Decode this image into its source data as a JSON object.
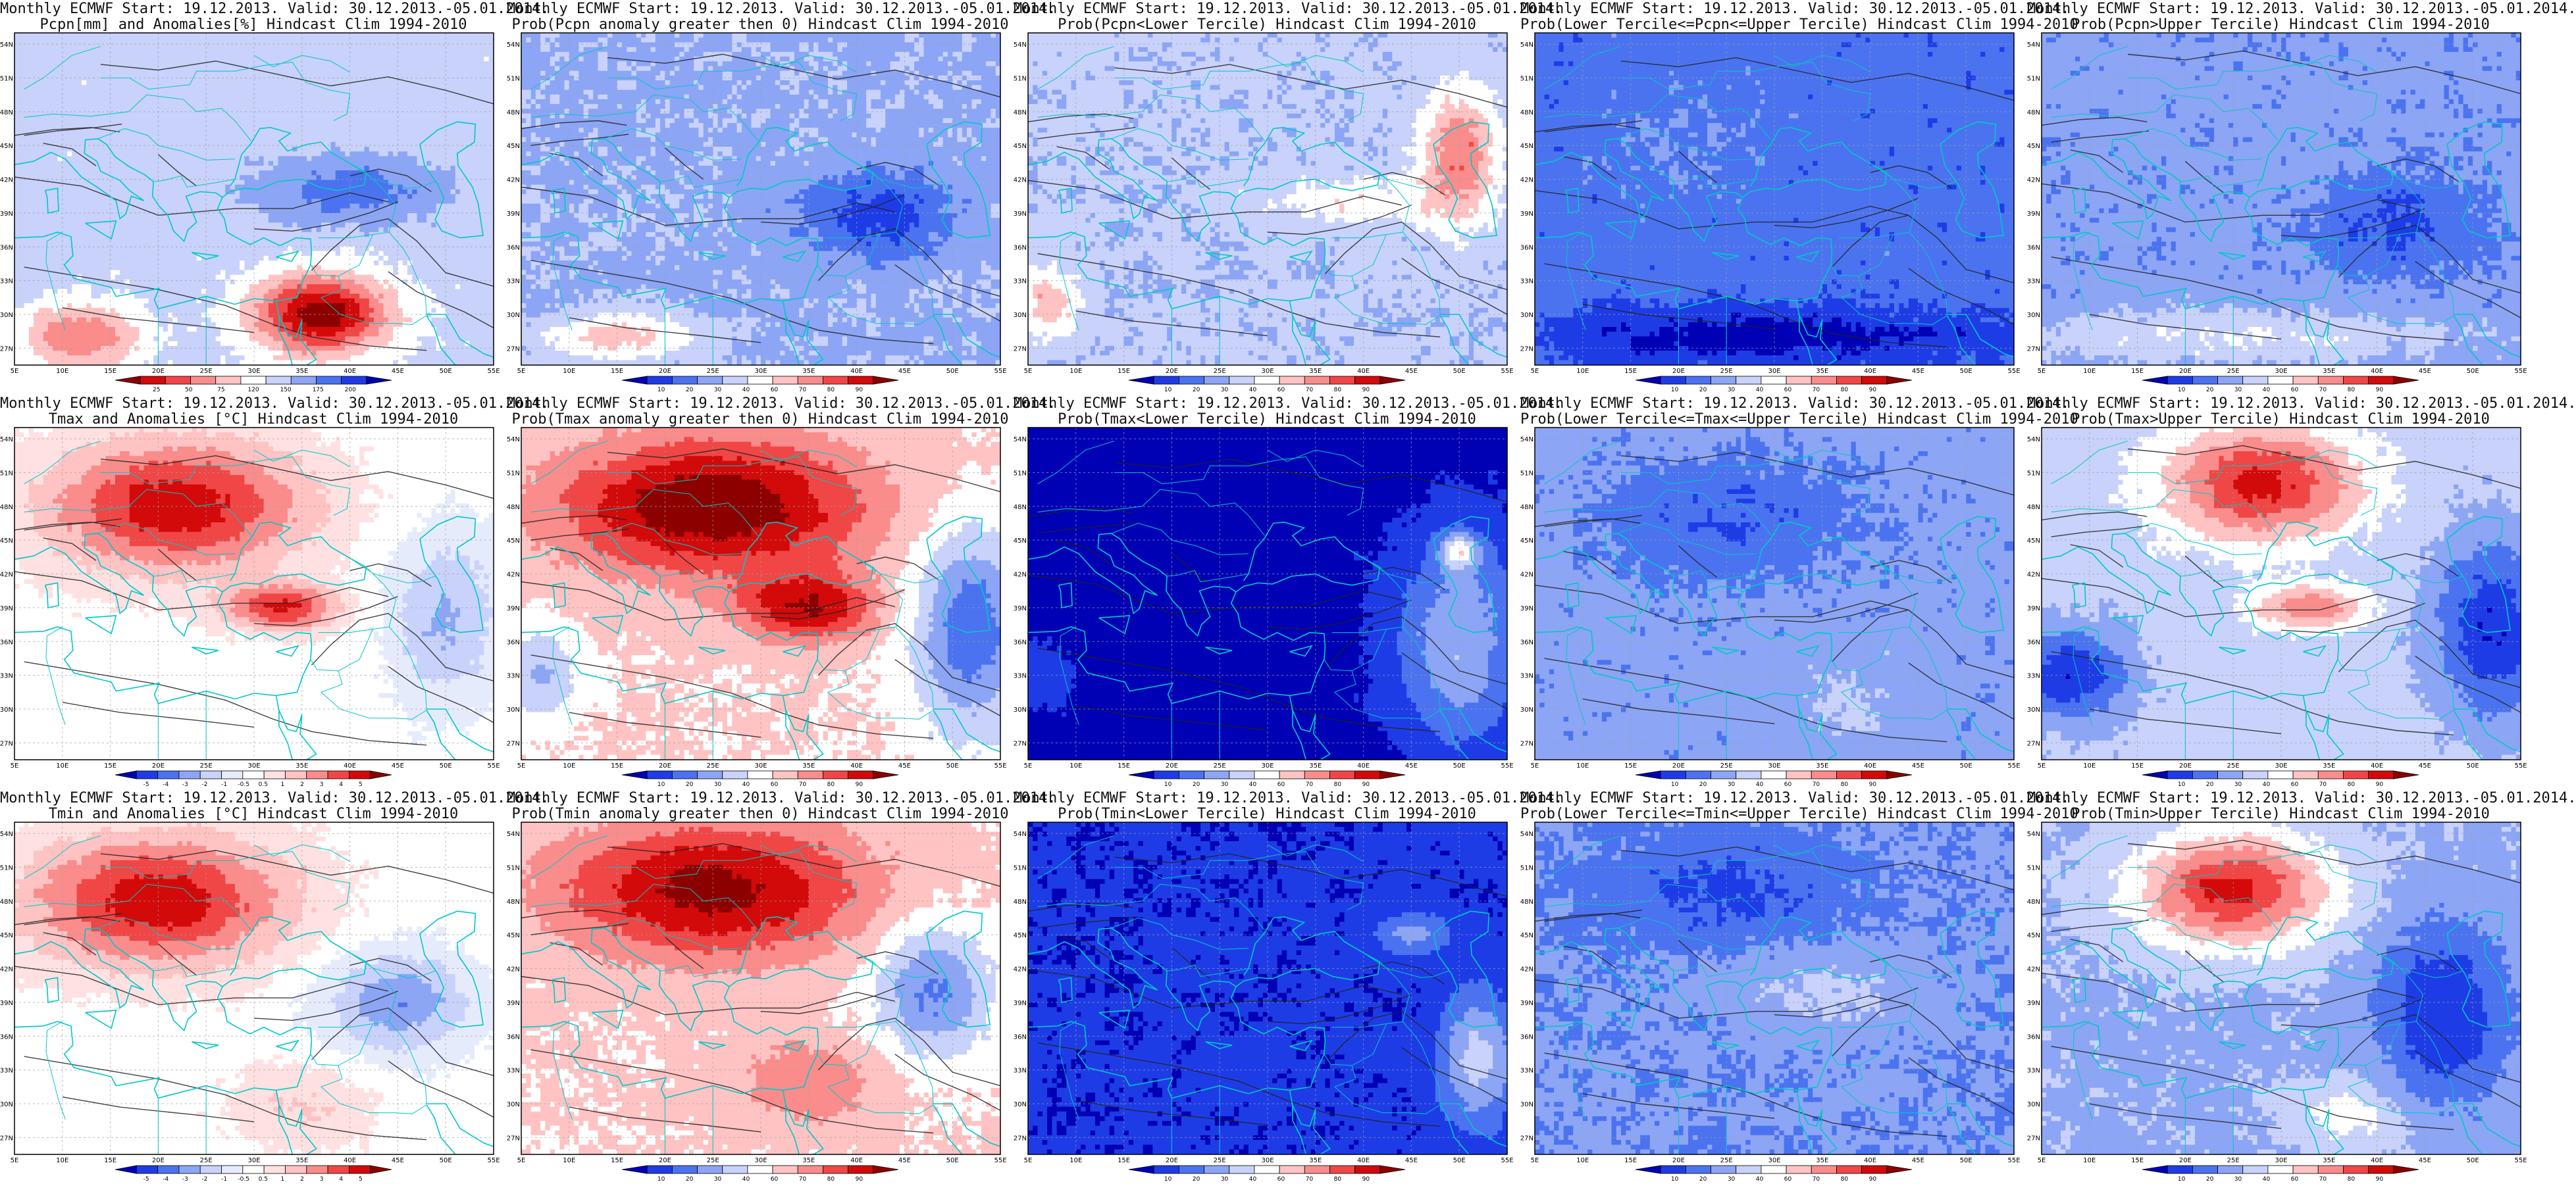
{
  "figure": {
    "panels": [
      {
        "id": "pcpn-anom",
        "title1": "Monthly ECMWF Start: 19.12.2013. Valid: 30.12.2013.-05.01.2014.",
        "title2": "Pcpn[mm] and Anomalies[%] Hindcast Clim 1994-2010",
        "palette": "anom-pcpn",
        "field": "pcpn_anom",
        "colorbar_labels": [
          "25",
          "50",
          "75",
          "120",
          "150",
          "175",
          "200"
        ]
      },
      {
        "id": "pcpn-prob-gt0",
        "title1": "Monthly ECMWF Start: 19.12.2013. Valid: 30.12.2013.-05.01.2014.",
        "title2": "Prob(Pcpn anomaly greater then 0) Hindcast Clim 1994-2010",
        "palette": "prob",
        "field": "pcpn_p0",
        "colorbar_labels": [
          "10",
          "20",
          "30",
          "40",
          "60",
          "70",
          "80",
          "90"
        ]
      },
      {
        "id": "pcpn-prob-lower",
        "title1": "Monthly ECMWF Start: 19.12.2013. Valid: 30.12.2013.-05.01.2014.",
        "title2": "Prob(Pcpn<Lower Tercile) Hindcast Clim 1994-2010",
        "palette": "prob",
        "field": "pcpn_lo",
        "colorbar_labels": [
          "10",
          "20",
          "30",
          "40",
          "60",
          "70",
          "80",
          "90"
        ]
      },
      {
        "id": "pcpn-prob-middle",
        "title1": "Monthly ECMWF Start: 19.12.2013. Valid: 30.12.2013.-05.01.2014.",
        "title2": "Prob(Lower Tercile<=Pcpn<=Upper Tercile) Hindcast Clim 1994-2010",
        "palette": "prob",
        "field": "pcpn_mid",
        "colorbar_labels": [
          "10",
          "20",
          "30",
          "40",
          "60",
          "70",
          "80",
          "90"
        ]
      },
      {
        "id": "pcpn-prob-upper",
        "title1": "Monthly ECMWF Start: 19.12.2013. Valid: 30.12.2013.-05.01.2014.",
        "title2": "Prob(Pcpn>Upper Tercile) Hindcast Clim 1994-2010",
        "palette": "prob",
        "field": "pcpn_up",
        "colorbar_labels": [
          "10",
          "20",
          "30",
          "40",
          "60",
          "70",
          "80",
          "90"
        ]
      },
      {
        "id": "tmax-anom",
        "title1": "Monthly ECMWF Start: 19.12.2013. Valid: 30.12.2013.-05.01.2014.",
        "title2": "Tmax and Anomalies [°C] Hindcast Clim 1994-2010",
        "palette": "anom-temp",
        "field": "tmax_anom",
        "colorbar_labels": [
          "-5",
          "-4",
          "-3",
          "-2",
          "-1",
          "-0.5",
          "0.5",
          "1",
          "2",
          "3",
          "4",
          "5"
        ]
      },
      {
        "id": "tmax-prob-gt0",
        "title1": "Monthly ECMWF Start: 19.12.2013. Valid: 30.12.2013.-05.01.2014.",
        "title2": "Prob(Tmax anomaly greater then 0) Hindcast Clim 1994-2010",
        "palette": "prob",
        "field": "tmax_p0",
        "colorbar_labels": [
          "10",
          "20",
          "30",
          "40",
          "60",
          "70",
          "80",
          "90"
        ]
      },
      {
        "id": "tmax-prob-lower",
        "title1": "Monthly ECMWF Start: 19.12.2013. Valid: 30.12.2013.-05.01.2014.",
        "title2": "Prob(Tmax<Lower Tercile) Hindcast Clim 1994-2010",
        "palette": "prob",
        "field": "tmax_lo",
        "colorbar_labels": [
          "10",
          "20",
          "30",
          "40",
          "60",
          "70",
          "80",
          "90"
        ]
      },
      {
        "id": "tmax-prob-middle",
        "title1": "Monthly ECMWF Start: 19.12.2013. Valid: 30.12.2013.-05.01.2014.",
        "title2": "Prob(Lower Tercile<=Tmax<=Upper Tercile) Hindcast Clim 1994-2010",
        "palette": "prob",
        "field": "tmax_mid",
        "colorbar_labels": [
          "10",
          "20",
          "30",
          "40",
          "60",
          "70",
          "80",
          "90"
        ]
      },
      {
        "id": "tmax-prob-upper",
        "title1": "Monthly ECMWF Start: 19.12.2013. Valid: 30.12.2013.-05.01.2014.",
        "title2": "Prob(Tmax>Upper Tercile) Hindcast Clim 1994-2010",
        "palette": "prob",
        "field": "tmax_up",
        "colorbar_labels": [
          "10",
          "20",
          "30",
          "40",
          "60",
          "70",
          "80",
          "90"
        ]
      },
      {
        "id": "tmin-anom",
        "title1": "Monthly ECMWF Start: 19.12.2013. Valid: 30.12.2013.-05.01.2014.",
        "title2": "Tmin and Anomalies [°C] Hindcast Clim 1994-2010",
        "palette": "anom-temp",
        "field": "tmin_anom",
        "colorbar_labels": [
          "-5",
          "-4",
          "-3",
          "-2",
          "-1",
          "-0.5",
          "0.5",
          "1",
          "2",
          "3",
          "4",
          "5"
        ]
      },
      {
        "id": "tmin-prob-gt0",
        "title1": "Monthly ECMWF Start: 19.12.2013. Valid: 30.12.2013.-05.01.2014.",
        "title2": "Prob(Tmin anomaly greater then 0) Hindcast Clim 1994-2010",
        "palette": "prob",
        "field": "tmin_p0",
        "colorbar_labels": [
          "10",
          "20",
          "30",
          "40",
          "60",
          "70",
          "80",
          "90"
        ]
      },
      {
        "id": "tmin-prob-lower",
        "title1": "Monthly ECMWF Start: 19.12.2013. Valid: 30.12.2013.-05.01.2014.",
        "title2": "Prob(Tmin<Lower Tercile) Hindcast Clim 1994-2010",
        "palette": "prob",
        "field": "tmin_lo",
        "colorbar_labels": [
          "10",
          "20",
          "30",
          "40",
          "60",
          "70",
          "80",
          "90"
        ]
      },
      {
        "id": "tmin-prob-middle",
        "title1": "Monthly ECMWF Start: 19.12.2013. Valid: 30.12.2013.-05.01.2014.",
        "title2": "Prob(Lower Tercile<=Tmin<=Upper Tercile) Hindcast Clim 1994-2010",
        "palette": "prob",
        "field": "tmin_mid",
        "colorbar_labels": [
          "10",
          "20",
          "30",
          "40",
          "60",
          "70",
          "80",
          "90"
        ]
      },
      {
        "id": "tmin-prob-upper",
        "title1": "Monthly ECMWF Start: 19.12.2013. Valid: 30.12.2013.-05.01.2014.",
        "title2": "Prob(Tmin>Upper Tercile) Hindcast Clim 1994-2010",
        "palette": "prob",
        "field": "tmin_up",
        "colorbar_labels": [
          "10",
          "20",
          "30",
          "40",
          "60",
          "70",
          "80",
          "90"
        ]
      }
    ],
    "lon_labels": [
      "5E",
      "10E",
      "15E",
      "20E",
      "25E",
      "30E",
      "35E",
      "40E",
      "45E",
      "50E",
      "55E"
    ],
    "lat_labels": [
      "54N",
      "51N",
      "48N",
      "45N",
      "42N",
      "39N",
      "36N",
      "33N",
      "30N",
      "27N"
    ],
    "palettes": {
      "prob": [
        "#0000b4",
        "#1e3ce6",
        "#4b73f0",
        "#8ca5f5",
        "#c8d2fa",
        "#ffffff",
        "#ffc3c3",
        "#fa8c8c",
        "#f04646",
        "#d20a0a",
        "#8c0000"
      ],
      "anom-pcpn": [
        "#8c0000",
        "#d20a0a",
        "#f04646",
        "#fa8c8c",
        "#ffc3c3",
        "#ffffff",
        "#c8d2fa",
        "#8ca5f5",
        "#4b73f0",
        "#1e3ce6",
        "#0000b4"
      ],
      "anom-temp": [
        "#0000b4",
        "#1e3ce6",
        "#4b73f0",
        "#8ca5f5",
        "#c8d2fa",
        "#e6ebfc",
        "#ffffff",
        "#ffe1e1",
        "#ffc3c3",
        "#fa8c8c",
        "#f04646",
        "#d20a0a",
        "#8c0000"
      ]
    },
    "coast_color": "#00c8c8",
    "contour_color": "#222222",
    "grid_color": "#a0a0a0"
  }
}
